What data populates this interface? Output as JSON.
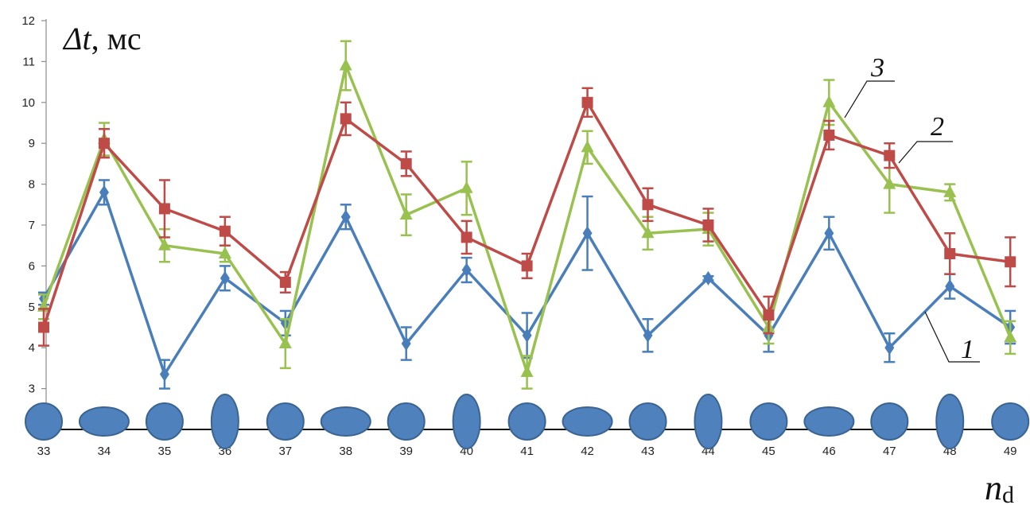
{
  "chart_data": {
    "type": "line",
    "x": [
      33,
      34,
      35,
      36,
      37,
      38,
      39,
      40,
      41,
      42,
      43,
      44,
      45,
      46,
      47,
      48,
      49
    ],
    "ylim": [
      2,
      12
    ],
    "yticks": [
      2,
      3,
      4,
      5,
      6,
      7,
      8,
      9,
      10,
      11,
      12
    ],
    "ylabel_symbol": "Δt",
    "ylabel_unit": ", мс",
    "xlabel": "n",
    "xlabel_subscript": "d",
    "grid": false,
    "series": [
      {
        "name": "1",
        "color": "#4a7ebb",
        "marker": "diamond",
        "values": [
          5.2,
          7.8,
          3.35,
          5.7,
          4.6,
          7.2,
          4.1,
          5.9,
          4.3,
          6.8,
          4.3,
          5.7,
          4.3,
          6.8,
          4.0,
          5.5,
          4.5
        ],
        "errors": [
          0.15,
          0.3,
          0.35,
          0.3,
          0.3,
          0.3,
          0.4,
          0.3,
          0.55,
          0.9,
          0.4,
          0.05,
          0.4,
          0.4,
          0.35,
          0.3,
          0.4
        ]
      },
      {
        "name": "2",
        "color": "#be4b48",
        "marker": "square",
        "values": [
          4.5,
          9.0,
          7.4,
          6.85,
          5.6,
          9.6,
          8.5,
          6.7,
          6.0,
          10.0,
          7.5,
          7.0,
          4.8,
          9.2,
          8.7,
          6.3,
          6.1
        ],
        "errors": [
          0.45,
          0.35,
          0.7,
          0.35,
          0.25,
          0.4,
          0.3,
          0.4,
          0.3,
          0.35,
          0.4,
          0.4,
          0.45,
          0.35,
          0.3,
          0.5,
          0.6
        ]
      },
      {
        "name": "3",
        "color": "#98c14f",
        "marker": "triangle",
        "values": [
          5.0,
          9.1,
          6.5,
          6.3,
          4.1,
          10.9,
          7.25,
          7.9,
          3.4,
          8.9,
          6.8,
          6.9,
          4.5,
          10.0,
          8.0,
          7.8,
          4.25
        ],
        "errors": [
          0.3,
          0.4,
          0.4,
          0.2,
          0.6,
          0.6,
          0.5,
          0.65,
          0.4,
          0.4,
          0.4,
          0.4,
          0.4,
          0.55,
          0.7,
          0.2,
          0.4
        ]
      }
    ],
    "droplet_shapes": [
      "sphere",
      "oblate",
      "sphere",
      "prolate",
      "sphere",
      "oblate",
      "sphere",
      "prolate",
      "sphere",
      "oblate",
      "sphere",
      "prolate",
      "sphere",
      "oblate",
      "sphere",
      "prolate",
      "sphere"
    ],
    "colors": {
      "axis": "#8c8c8c",
      "droplet_fill": "#4f81bd",
      "droplet_stroke": "#3a6494"
    }
  }
}
